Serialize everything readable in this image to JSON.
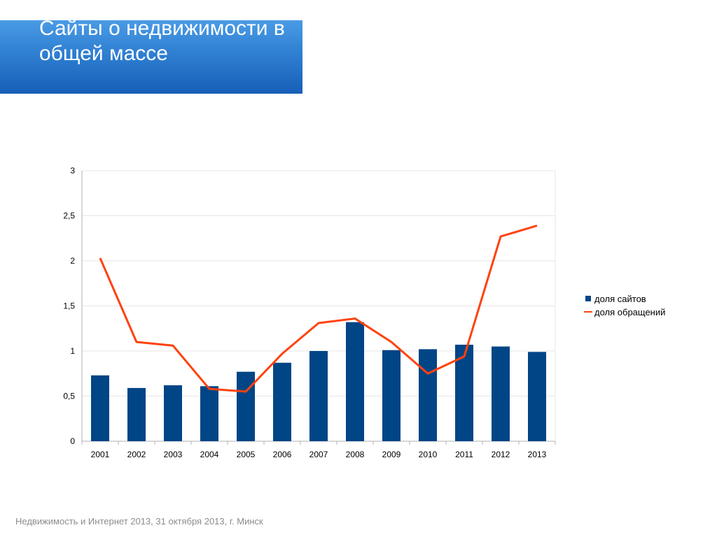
{
  "slide": {
    "title": "Сайты о недвижимости в общей массе",
    "footer": "Недвижимость и Интернет 2013, 31 октября 2013, г. Минск"
  },
  "colors": {
    "banner": "#2f7fd2",
    "bars": "#004586",
    "line": "#ff420e",
    "grid": "#e6e6e6",
    "axis": "#b3b3b3"
  },
  "chart_data": {
    "type": "bar",
    "title": "",
    "xlabel": "",
    "ylabel": "",
    "categories": [
      "2001",
      "2002",
      "2003",
      "2004",
      "2005",
      "2006",
      "2007",
      "2008",
      "2009",
      "2010",
      "2011",
      "2012",
      "2013"
    ],
    "series": [
      {
        "name": "доля сайтов",
        "type": "bar",
        "values": [
          0.73,
          0.59,
          0.62,
          0.61,
          0.77,
          0.87,
          1.0,
          1.32,
          1.01,
          1.02,
          1.07,
          1.05,
          0.99
        ]
      },
      {
        "name": "доля обращений",
        "type": "line",
        "values": [
          2.03,
          1.1,
          1.06,
          0.58,
          0.55,
          0.97,
          1.31,
          1.36,
          1.1,
          0.75,
          0.94,
          2.27,
          2.39
        ]
      }
    ],
    "yticks": [
      "0",
      "0,5",
      "1",
      "1,5",
      "2",
      "2,5",
      "3"
    ],
    "ylim": [
      0,
      3
    ],
    "grid": true,
    "legend_position": "right"
  }
}
